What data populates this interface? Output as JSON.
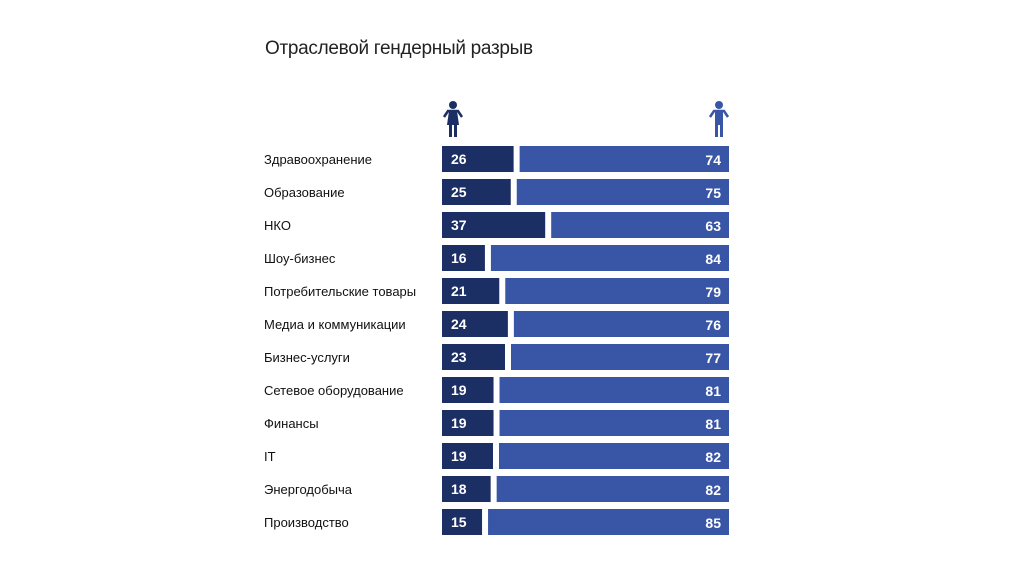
{
  "chart_data": {
    "type": "bar",
    "stacked": true,
    "orientation": "horizontal",
    "title": "Отраслевой гендерный разрыв",
    "categories": [
      "Здравоохранение",
      "Образование",
      "НКО",
      "Шоу-бизнес",
      "Потребительские товары",
      "Медиа и коммуникации",
      "Бизнес-услуги",
      "Сетевое оборудование",
      "Финансы",
      "IT",
      "Энергодобыча",
      "Производство"
    ],
    "series": [
      {
        "name": "female",
        "icon": "female-icon",
        "color": "#1c2f64",
        "values": [
          26,
          25,
          37,
          16,
          21,
          24,
          23,
          19,
          19,
          19,
          18,
          15
        ]
      },
      {
        "name": "male",
        "icon": "male-icon",
        "color": "#3955a6",
        "values": [
          74,
          75,
          63,
          84,
          79,
          76,
          77,
          81,
          81,
          82,
          82,
          85
        ]
      }
    ],
    "xlim": [
      0,
      100
    ],
    "grid": false
  }
}
